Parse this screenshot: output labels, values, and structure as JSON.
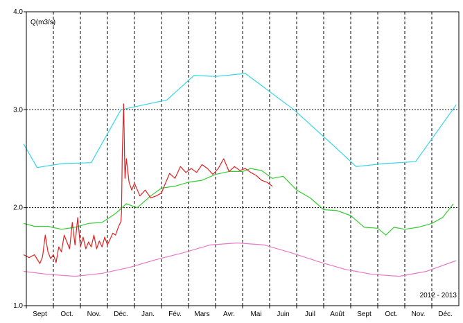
{
  "chart_data": {
    "type": "line",
    "title": "",
    "xlabel": "",
    "ylabel": "Q(m3/s)",
    "ylim": [
      1.0,
      4.0
    ],
    "yticks": [
      "1.0",
      "2.0",
      "3.0",
      "4.0"
    ],
    "xlim": [
      0,
      16
    ],
    "xticks": [
      "Sept",
      "Oct.",
      "Nov.",
      "Déc.",
      "Jan.",
      "Fév.",
      "Mars",
      "Avr.",
      "Mai",
      "Juin",
      "Juil",
      "Août",
      "Sept",
      "Oct.",
      "Nov.",
      "Déc."
    ],
    "period_label": "2012 - 2013",
    "grid": true,
    "colors": {
      "cyan": "#33d6e6",
      "green": "#33cc33",
      "red": "#e02020",
      "pink": "#e878c8",
      "grid": "#000000"
    },
    "series": [
      {
        "color": "cyan",
        "x": [
          -0.1,
          0.4,
          1.3,
          2.4,
          3.5,
          5.2,
          6.2,
          7.0,
          8.1,
          9.9,
          11.3,
          12.2,
          13.2,
          14.4,
          15.9
        ],
        "y": [
          2.65,
          2.41,
          2.45,
          2.46,
          3.0,
          3.1,
          3.35,
          3.34,
          3.37,
          3.0,
          2.65,
          2.42,
          2.45,
          2.47,
          3.05
        ]
      },
      {
        "color": "green",
        "x": [
          -0.1,
          0.3,
          0.8,
          1.3,
          1.8,
          2.3,
          2.8,
          3.3,
          3.7,
          4.1,
          4.6,
          5.0,
          5.5,
          6.0,
          6.5,
          7.0,
          7.5,
          8.0,
          8.3,
          8.7,
          9.1,
          9.5,
          10.0,
          10.5,
          11.0,
          11.5,
          12.0,
          12.5,
          13.0,
          13.3,
          13.6,
          14.0,
          14.5,
          15.0,
          15.4,
          15.8
        ],
        "y": [
          1.84,
          1.81,
          1.81,
          1.78,
          1.8,
          1.84,
          1.85,
          1.94,
          2.04,
          2.0,
          2.12,
          2.2,
          2.22,
          2.26,
          2.28,
          2.34,
          2.37,
          2.37,
          2.4,
          2.38,
          2.3,
          2.32,
          2.18,
          2.1,
          1.98,
          1.97,
          1.92,
          1.8,
          1.79,
          1.72,
          1.8,
          1.78,
          1.8,
          1.84,
          1.9,
          2.04
        ]
      },
      {
        "color": "red",
        "x": [
          -0.1,
          0.1,
          0.3,
          0.5,
          0.6,
          0.7,
          0.8,
          0.9,
          1.0,
          1.1,
          1.2,
          1.3,
          1.4,
          1.5,
          1.6,
          1.7,
          1.8,
          1.9,
          2.0,
          2.1,
          2.2,
          2.3,
          2.4,
          2.5,
          2.6,
          2.7,
          2.8,
          2.9,
          3.0,
          3.1,
          3.2,
          3.3,
          3.4,
          3.5,
          3.52,
          3.55,
          3.6,
          3.65,
          3.7,
          3.8,
          3.9,
          4.0,
          4.2,
          4.4,
          4.6,
          4.8,
          5.0,
          5.1,
          5.3,
          5.5,
          5.7,
          5.9,
          6.1,
          6.3,
          6.5,
          6.7,
          6.9,
          7.1,
          7.3,
          7.5,
          7.7,
          7.9,
          8.1,
          8.3,
          8.5,
          8.7,
          8.9,
          9.1
        ],
        "y": [
          1.52,
          1.49,
          1.52,
          1.43,
          1.5,
          1.72,
          1.55,
          1.48,
          1.52,
          1.44,
          1.6,
          1.55,
          1.72,
          1.65,
          1.58,
          1.85,
          1.62,
          1.9,
          1.6,
          1.7,
          1.58,
          1.65,
          1.6,
          1.72,
          1.58,
          1.66,
          1.6,
          1.7,
          1.62,
          1.68,
          1.74,
          1.72,
          1.8,
          1.86,
          1.95,
          2.55,
          3.06,
          2.3,
          2.5,
          2.26,
          2.18,
          2.25,
          2.12,
          2.18,
          2.1,
          2.12,
          2.15,
          2.22,
          2.35,
          2.3,
          2.42,
          2.36,
          2.4,
          2.36,
          2.44,
          2.4,
          2.34,
          2.4,
          2.5,
          2.37,
          2.42,
          2.38,
          2.4,
          2.36,
          2.33,
          2.28,
          2.26,
          2.22
        ]
      },
      {
        "color": "pink",
        "x": [
          -0.1,
          0.8,
          1.8,
          2.8,
          3.8,
          4.8,
          5.8,
          6.8,
          7.8,
          8.8,
          9.8,
          10.8,
          11.8,
          12.8,
          13.8,
          14.8,
          15.9
        ],
        "y": [
          1.35,
          1.32,
          1.3,
          1.33,
          1.39,
          1.47,
          1.54,
          1.62,
          1.64,
          1.62,
          1.54,
          1.45,
          1.37,
          1.32,
          1.3,
          1.35,
          1.46
        ]
      }
    ]
  }
}
